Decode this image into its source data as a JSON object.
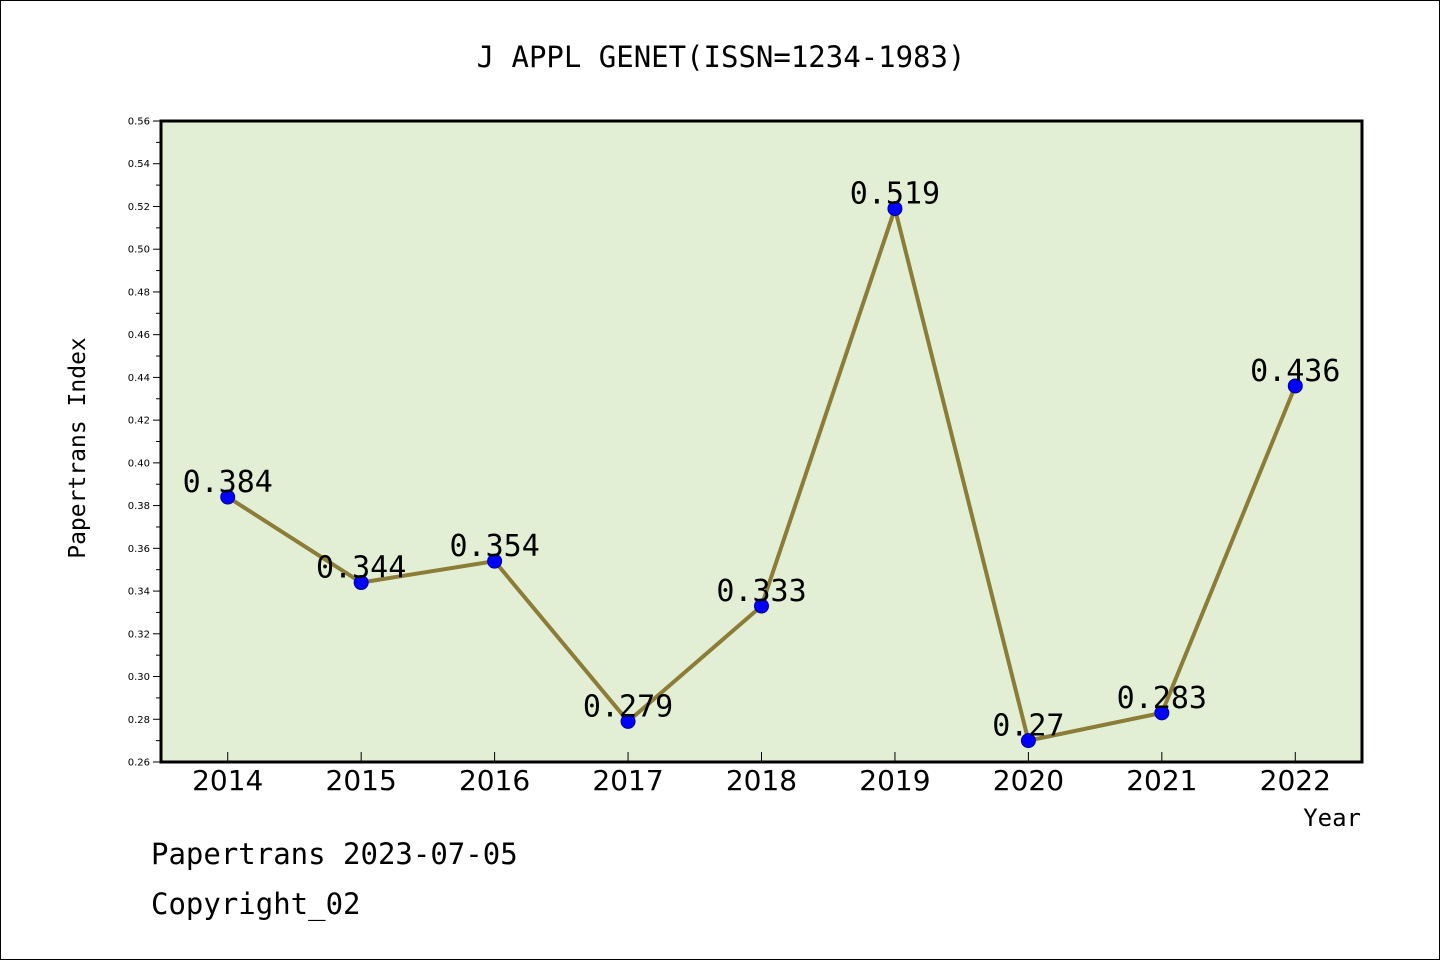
{
  "chart_data": {
    "type": "line",
    "title": "J APPL GENET(ISSN=1234-1983)",
    "xlabel": "Year",
    "ylabel": "Papertrans Index",
    "categories": [
      "2014",
      "2015",
      "2016",
      "2017",
      "2018",
      "2019",
      "2020",
      "2021",
      "2022"
    ],
    "values": [
      0.384,
      0.344,
      0.354,
      0.279,
      0.333,
      0.519,
      0.27,
      0.283,
      0.436
    ],
    "data_labels": [
      "0.384",
      "0.344",
      "0.354",
      "0.279",
      "0.333",
      "0.519",
      "0.27",
      "0.283",
      "0.436"
    ],
    "ylim": [
      0.26,
      0.56
    ],
    "yticks": [
      "0.26",
      "0.28",
      "0.30",
      "0.32",
      "0.34",
      "0.36",
      "0.38",
      "0.40",
      "0.42",
      "0.44",
      "0.46",
      "0.48",
      "0.50",
      "0.52",
      "0.54",
      "0.56"
    ],
    "grid": false,
    "colors": {
      "plot_background": "#e2efd5",
      "line": "#8b7d37",
      "marker": "#0000ff"
    }
  },
  "footer": {
    "line1": "Papertrans 2023-07-05",
    "line2": "Copyright_02"
  }
}
